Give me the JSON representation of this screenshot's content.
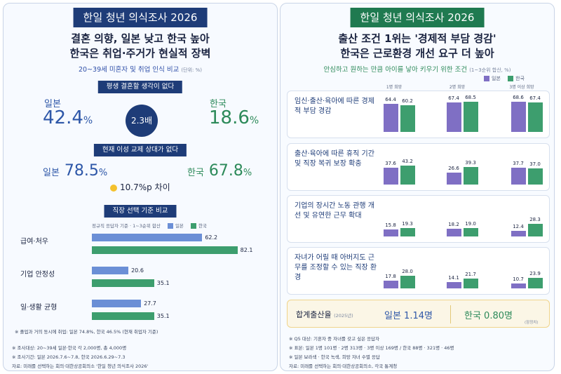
{
  "left": {
    "banner": "한일 청년 의식조사 2026",
    "headline1": "결혼 의향, 일본 낮고 한국 높아",
    "headline2": "한국은 취업·주거가 현실적 장벽",
    "subtitle": "20~39세 미혼자 및 취업 인식 비교",
    "subtitle_unit": "(단위: %)",
    "section1_title": "평생 결혼할 생각이 없다",
    "japan_label": "일본",
    "korea_label": "한국",
    "s1_japan_value": "42.4",
    "s1_korea_value": "18.6",
    "pct": "%",
    "ratio_badge": "2.3배",
    "section2_title": "현재 이성 교제 상대가 없다",
    "s2_japan_value": "78.5",
    "s2_korea_value": "67.8",
    "gap_text": "10.7%p 차이",
    "section3_title": "직장 선택 기준 비교",
    "s3_note": "정규직 응답자 기준 · 1~3순위 합산",
    "footnote_in": "※ 졸업과 거의 동시에 취업: 일본 74.8%, 한국 46.5% (현재 취업자 기준)",
    "foot1": "※ 조사대상: 20~39세 일본·한국 각 2,000명, 총 4,000명",
    "foot2": "※ 조사기간: 일본 2026.7.6~7.8, 한국 2026.6.29~7.3",
    "foot3": "자료: 미래를 선택하는 회의·대한상공회의소 '한일 청년 의식조사 2026'"
  },
  "right": {
    "banner": "한일 청년 의식조사 2026",
    "headline1": "출산 조건 1위는 '경제적 부담 경감'",
    "headline2": "한국은 근로환경 개선 요구 더 높아",
    "subtitle": "안심하고 원하는 만큼 아이를 낳아 키우기 위한 조건",
    "subtitle_unit": "(1~3순위 합산, %)",
    "legend_japan": "일본",
    "legend_korea": "한국",
    "birth_title": "합계출산율",
    "birth_year": "(2025년)",
    "birth_japan": "일본 1.14명",
    "birth_korea": "한국 0.80명",
    "birth_note": "(잠정치)",
    "foot1": "※ Q5 대상: 기혼자 중 자녀를 갖고 싶은 응답자",
    "foot2": "※ 표본: 일본 1명 101명 · 2명 313명 · 3명 이상 169명 / 한국 88명 · 321명 · 46명",
    "foot3": "※ 일본 보라색 · 한국 녹색, 희망 자녀 수별 응답",
    "foot4": "자료: 미래를 선택하는 회의·대한상공회의소, 각국 통계청"
  },
  "colors": {
    "navy": "#1e3c78",
    "green_banner": "#1f7a50",
    "japan_blue": "#6b8fd6",
    "korea_green": "#3d9e6e",
    "japan_purple": "#7f6fc4",
    "korea_green2": "#3d9e6e",
    "gold": "#f4c12e"
  },
  "chart_data": [
    {
      "type": "bar",
      "orientation": "horizontal",
      "title": "직장 선택 기준 비교",
      "categories": [
        "급여·처우",
        "기업 안정성",
        "일·생활 균형"
      ],
      "series": [
        {
          "name": "일본",
          "values": [
            62.2,
            20.6,
            27.7
          ]
        },
        {
          "name": "한국",
          "values": [
            82.1,
            35.1,
            35.1
          ]
        }
      ],
      "xlim": [
        0,
        85
      ]
    },
    {
      "type": "bar",
      "title": "안심하고 원하는 만큼 아이를 낳아 키우기 위한 조건",
      "groups": [
        "1명 희망",
        "2명 희망",
        "3명 이상 희망"
      ],
      "series_names": [
        "일본",
        "한국"
      ],
      "ylim": [
        0,
        70
      ],
      "rows": [
        {
          "label": "임신·출산·육아에 따른 경제적 부담 경감",
          "japan": [
            64.4,
            67.4,
            68.6
          ],
          "korea": [
            60.2,
            68.5,
            67.4
          ]
        },
        {
          "label": "출산·육아에 따른 휴직 기간 및 직장 복귀 보장 확충",
          "japan": [
            37.6,
            26.6,
            37.7
          ],
          "korea": [
            43.2,
            39.3,
            37.0
          ]
        },
        {
          "label": "기업의 장시간 노동 관행 개선 및 유연한 근무 확대",
          "japan": [
            15.8,
            18.2,
            12.4
          ],
          "korea": [
            19.3,
            19.0,
            28.3
          ]
        },
        {
          "label": "자녀가 어릴 때 아버지도 근무를 조정할 수 있는 직장 환경",
          "japan": [
            17.8,
            14.1,
            10.7
          ],
          "korea": [
            28.0,
            21.7,
            23.9
          ]
        }
      ]
    }
  ]
}
